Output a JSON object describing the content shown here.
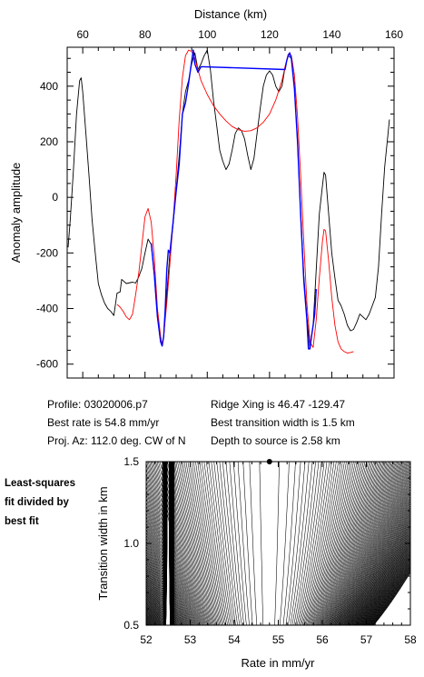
{
  "chart_data": [
    {
      "type": "line",
      "xlabel": "Distance (km)",
      "ylabel": "Anomaly amplitude",
      "xlim": [
        55,
        160
      ],
      "ylim": [
        -650,
        540
      ],
      "xticks": [
        60,
        80,
        100,
        120,
        140,
        160
      ],
      "yticks": [
        -600,
        -400,
        -200,
        0,
        200,
        400
      ],
      "x_axis_position": "top",
      "grid": false,
      "series": [
        {
          "color": "#000000",
          "points": [
            [
              55.3,
              -180
            ],
            [
              56,
              -80
            ],
            [
              57,
              100
            ],
            [
              58,
              300
            ],
            [
              59,
              420
            ],
            [
              59.5,
              430
            ],
            [
              60,
              380
            ],
            [
              61,
              230
            ],
            [
              62,
              80
            ],
            [
              63,
              -80
            ],
            [
              64,
              -200
            ],
            [
              65,
              -310
            ],
            [
              66,
              -350
            ],
            [
              67,
              -380
            ],
            [
              68,
              -400
            ],
            [
              69,
              -410
            ],
            [
              70,
              -425
            ],
            [
              71,
              -345
            ],
            [
              72,
              -340
            ],
            [
              72.5,
              -295
            ],
            [
              73,
              -300
            ],
            [
              74,
              -310
            ],
            [
              76,
              -305
            ],
            [
              77,
              -308
            ],
            [
              78,
              -285
            ],
            [
              79,
              -255
            ],
            [
              80,
              -200
            ],
            [
              81,
              -150
            ],
            [
              82,
              -170
            ],
            [
              83,
              -280
            ],
            [
              84,
              -430
            ],
            [
              85,
              -520
            ],
            [
              85.5,
              -535
            ],
            [
              86,
              -500
            ],
            [
              87,
              -350
            ],
            [
              88,
              -200
            ],
            [
              89,
              -100
            ],
            [
              90,
              30
            ],
            [
              91,
              150
            ],
            [
              92,
              300
            ],
            [
              93,
              380
            ],
            [
              94,
              420
            ],
            [
              95,
              480
            ],
            [
              96,
              520
            ],
            [
              97,
              460
            ],
            [
              98,
              480
            ],
            [
              99,
              510
            ],
            [
              100,
              530
            ],
            [
              101,
              460
            ],
            [
              102,
              350
            ],
            [
              103,
              260
            ],
            [
              104,
              170
            ],
            [
              105,
              130
            ],
            [
              106,
              100
            ],
            [
              107,
              120
            ],
            [
              108,
              170
            ],
            [
              109,
              230
            ],
            [
              110,
              250
            ],
            [
              111,
              240
            ],
            [
              112,
              210
            ],
            [
              113,
              150
            ],
            [
              114,
              100
            ],
            [
              115,
              140
            ],
            [
              116,
              230
            ],
            [
              117,
              320
            ],
            [
              118,
              400
            ],
            [
              119,
              440
            ],
            [
              120,
              455
            ],
            [
              121,
              440
            ],
            [
              122,
              400
            ],
            [
              123,
              380
            ],
            [
              124,
              400
            ],
            [
              125,
              470
            ],
            [
              126,
              510
            ],
            [
              127,
              500
            ],
            [
              128,
              400
            ],
            [
              129,
              200
            ],
            [
              130,
              -50
            ],
            [
              131,
              -280
            ],
            [
              132,
              -430
            ],
            [
              133,
              -545
            ],
            [
              134,
              -460
            ],
            [
              135,
              -260
            ],
            [
              136,
              -60
            ],
            [
              137,
              40
            ],
            [
              137.5,
              90
            ],
            [
              138,
              80
            ],
            [
              139,
              -60
            ],
            [
              140,
              -200
            ],
            [
              141,
              -290
            ],
            [
              142,
              -370
            ],
            [
              143,
              -390
            ],
            [
              144,
              -420
            ],
            [
              145,
              -460
            ],
            [
              146,
              -480
            ],
            [
              147,
              -475
            ],
            [
              148,
              -450
            ],
            [
              149,
              -420
            ],
            [
              150,
              -430
            ],
            [
              151,
              -440
            ],
            [
              152,
              -420
            ],
            [
              153,
              -390
            ],
            [
              154,
              -360
            ],
            [
              155,
              -250
            ],
            [
              156,
              -60
            ],
            [
              157,
              110
            ],
            [
              158,
              220
            ],
            [
              158.5,
              280
            ]
          ]
        },
        {
          "color": "#ff0000",
          "points": [
            [
              71,
              -385
            ],
            [
              72,
              -395
            ],
            [
              73,
              -410
            ],
            [
              74,
              -430
            ],
            [
              75,
              -440
            ],
            [
              76,
              -420
            ],
            [
              77,
              -350
            ],
            [
              78,
              -270
            ],
            [
              79,
              -170
            ],
            [
              80,
              -70
            ],
            [
              81,
              -40
            ],
            [
              82,
              -90
            ],
            [
              83,
              -220
            ],
            [
              84,
              -400
            ],
            [
              85,
              -500
            ],
            [
              85.5,
              -530
            ],
            [
              86,
              -500
            ],
            [
              87,
              -380
            ],
            [
              88,
              -240
            ],
            [
              89,
              -90
            ],
            [
              90,
              80
            ],
            [
              91,
              280
            ],
            [
              92,
              430
            ],
            [
              93,
              510
            ],
            [
              94,
              530
            ],
            [
              95,
              525
            ],
            [
              96,
              500
            ],
            [
              97,
              460
            ],
            [
              98,
              420
            ],
            [
              100,
              370
            ],
            [
              102,
              330
            ],
            [
              104,
              300
            ],
            [
              106,
              275
            ],
            [
              108,
              255
            ],
            [
              110,
              243
            ],
            [
              112,
              238
            ],
            [
              114,
              240
            ],
            [
              116,
              250
            ],
            [
              118,
              270
            ],
            [
              120,
              300
            ],
            [
              122,
              350
            ],
            [
              124,
              420
            ],
            [
              125,
              470
            ],
            [
              126,
              515
            ],
            [
              127,
              510
            ],
            [
              128,
              440
            ],
            [
              129,
              290
            ],
            [
              130,
              80
            ],
            [
              131,
              -160
            ],
            [
              132,
              -380
            ],
            [
              133,
              -520
            ],
            [
              134,
              -540
            ],
            [
              135,
              -440
            ],
            [
              136,
              -290
            ],
            [
              137,
              -160
            ],
            [
              137.5,
              -115
            ],
            [
              138,
              -120
            ],
            [
              139,
              -230
            ],
            [
              140,
              -360
            ],
            [
              141,
              -460
            ],
            [
              142,
              -520
            ],
            [
              143,
              -545
            ],
            [
              144,
              -555
            ],
            [
              145,
              -560
            ],
            [
              146,
              -558
            ],
            [
              147,
              -555
            ]
          ]
        },
        {
          "color": "#0000ff",
          "points": [
            [
              82,
              -165
            ],
            [
              83,
              -280
            ],
            [
              84,
              -430
            ],
            [
              85,
              -520
            ],
            [
              85.5,
              -535
            ],
            [
              86,
              -500
            ],
            [
              86.5,
              -400
            ],
            [
              87,
              -260
            ],
            [
              87.5,
              -190
            ],
            [
              88,
              -200
            ],
            [
              89,
              -90
            ],
            [
              90,
              20
            ],
            [
              91,
              120
            ],
            [
              92,
              300
            ],
            [
              93,
              340
            ],
            [
              94,
              410
            ],
            [
              95,
              490
            ],
            [
              95.5,
              530
            ],
            [
              96,
              480
            ],
            [
              97,
              450
            ],
            [
              98,
              470
            ],
            [
              98.5,
              470
            ],
            [
              125,
              460
            ],
            [
              125.5,
              490
            ],
            [
              126,
              510
            ],
            [
              126.5,
              520
            ],
            [
              127,
              500
            ],
            [
              128,
              390
            ],
            [
              129,
              200
            ],
            [
              130,
              -60
            ],
            [
              131,
              -300
            ],
            [
              132,
              -440
            ],
            [
              132.5,
              -545
            ],
            [
              133,
              -545
            ],
            [
              133.5,
              -500
            ],
            [
              134,
              -460
            ],
            [
              134.5,
              -420
            ],
            [
              135,
              -330
            ]
          ]
        }
      ]
    },
    {
      "type": "contour",
      "xlabel": "Rate in mm/yr",
      "ylabel": "Transition width in km",
      "xlim": [
        52,
        58
      ],
      "ylim": [
        0.5,
        1.5
      ],
      "xticks": [
        52,
        53,
        54,
        55,
        56,
        57,
        58
      ],
      "yticks": [
        0.5,
        1.0,
        1.5
      ],
      "xtick_labels": [
        "52",
        "53",
        "54",
        "55",
        "56",
        "57",
        "58"
      ],
      "ytick_labels": [
        "0.5",
        "1.0",
        "1.5"
      ],
      "best_fit": {
        "rate": 54.8,
        "width": 1.5
      }
    }
  ],
  "info": {
    "profile": "Profile: 03020006.p7",
    "best_rate": "Best rate is 54.8 mm/yr",
    "proj_az": "Proj. Az: 112.0 deg. CW of N",
    "ridge_xing": "Ridge Xing is 46.47 -129.47",
    "best_width": "Best transition width is 1.5 km",
    "depth": "Depth to source is   2.58 km"
  },
  "side_note": [
    "Least-squares",
    "fit divided by",
    "best fit"
  ]
}
